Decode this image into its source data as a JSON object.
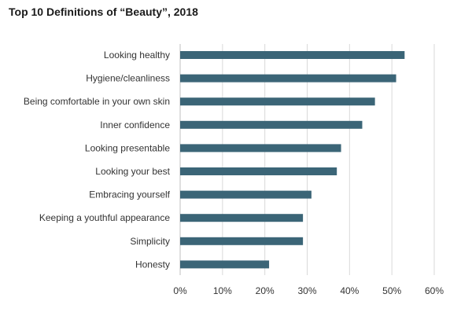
{
  "chart_data": {
    "type": "bar",
    "orientation": "horizontal",
    "title": "Top 10 Definitions of “Beauty”, 2018",
    "categories": [
      "Looking healthy",
      "Hygiene/cleanliness",
      "Being comfortable in your own skin",
      "Inner confidence",
      "Looking presentable",
      "Looking your best",
      "Embracing yourself",
      "Keeping a youthful appearance",
      "Simplicity",
      "Honesty"
    ],
    "values": [
      53,
      51,
      46,
      43,
      38,
      37,
      31,
      29,
      29,
      21
    ],
    "xlim": [
      0,
      60
    ],
    "ticks": [
      0,
      10,
      20,
      30,
      40,
      50,
      60
    ],
    "tick_labels": [
      "0%",
      "10%",
      "20%",
      "30%",
      "40%",
      "50%",
      "60%"
    ],
    "xlabel": "",
    "ylabel": "",
    "grid": "vertical",
    "bar_color": "#3b6577",
    "grid_color": "#d9d9d9"
  }
}
